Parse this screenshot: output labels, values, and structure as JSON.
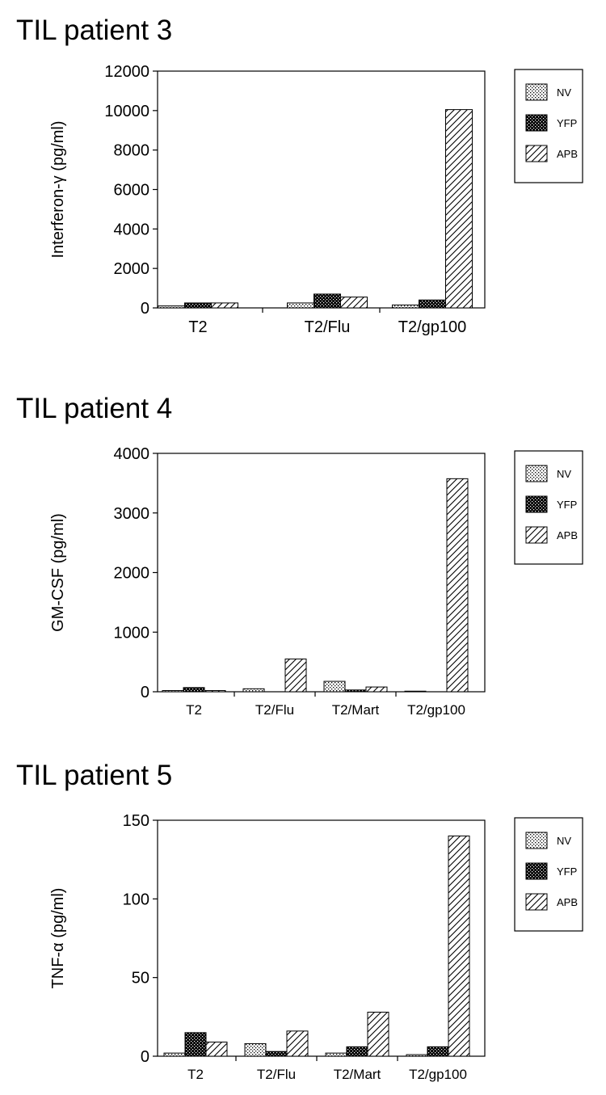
{
  "legend": [
    "NV",
    "YFP",
    "APB"
  ],
  "chart_data": [
    {
      "type": "bar",
      "title": "TIL patient 3",
      "ylabel": "Interferon-γ (pg/ml)",
      "xlabel": "",
      "ylim": [
        0,
        12000
      ],
      "yticks": [
        "0",
        "2000",
        "4000",
        "6000",
        "8000",
        "10000",
        "12000"
      ],
      "categories": [
        "T2",
        "T2/Flu",
        "T2/gp100"
      ],
      "series": [
        {
          "name": "NV",
          "values": [
            100,
            250,
            150
          ]
        },
        {
          "name": "YFP",
          "values": [
            250,
            700,
            400
          ]
        },
        {
          "name": "APB",
          "values": [
            250,
            550,
            10050
          ]
        }
      ]
    },
    {
      "type": "bar",
      "title": "TIL patient 4",
      "ylabel": "GM-CSF (pg/ml)",
      "xlabel": "",
      "ylim": [
        0,
        4000
      ],
      "yticks": [
        "0",
        "1000",
        "2000",
        "3000",
        "4000"
      ],
      "categories": [
        "T2",
        "T2/Flu",
        "T2/Mart",
        "T2/gp100"
      ],
      "series": [
        {
          "name": "NV",
          "values": [
            20,
            50,
            175,
            10
          ]
        },
        {
          "name": "YFP",
          "values": [
            70,
            0,
            30,
            0
          ]
        },
        {
          "name": "APB",
          "values": [
            20,
            550,
            80,
            3575
          ]
        }
      ]
    },
    {
      "type": "bar",
      "title": "TIL patient 5",
      "ylabel": "TNF-α (pg/ml)",
      "xlabel": "",
      "ylim": [
        0,
        150
      ],
      "yticks": [
        "0",
        "50",
        "100",
        "150"
      ],
      "categories": [
        "T2",
        "T2/Flu",
        "T2/Mart",
        "T2/gp100"
      ],
      "series": [
        {
          "name": "NV",
          "values": [
            2,
            8,
            2,
            1
          ]
        },
        {
          "name": "YFP",
          "values": [
            15,
            3,
            6,
            6
          ]
        },
        {
          "name": "APB",
          "values": [
            9,
            16,
            28,
            140
          ]
        }
      ]
    }
  ]
}
